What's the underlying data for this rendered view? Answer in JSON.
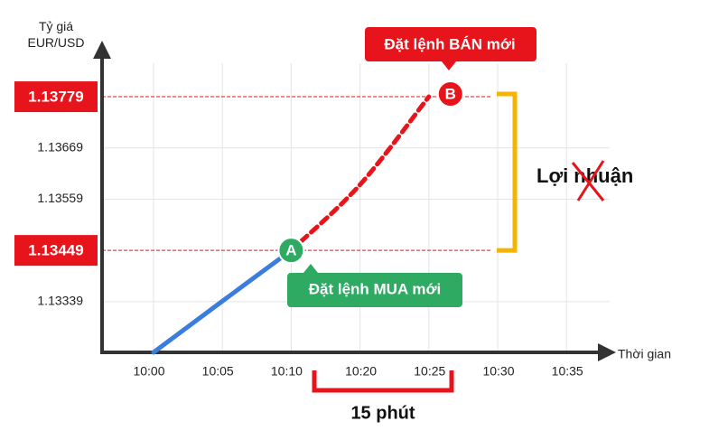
{
  "chart_data": {
    "type": "line",
    "y_label": "Tỷ giá\nEUR/USD",
    "x_label": "Thời gian",
    "categories": [
      "10:00",
      "10:05",
      "10:10",
      "10:20",
      "10:25",
      "10:30",
      "10:35"
    ],
    "series": [
      {
        "name": "solid",
        "color": "#3b7ddd",
        "style": "solid",
        "values": [
          1.1323,
          1.1334,
          1.13449,
          null,
          null,
          null,
          null
        ]
      },
      {
        "name": "dashed",
        "color": "#e8141c",
        "style": "dashed",
        "values": [
          null,
          null,
          1.13449,
          1.1359,
          1.13779,
          null,
          null
        ]
      }
    ],
    "ylim": [
      1.1323,
      1.1388
    ],
    "yticks": [
      1.13339,
      1.13449,
      1.13559,
      1.13669,
      1.13779
    ],
    "levels": {
      "buy": 1.13449,
      "sell": 1.13779
    },
    "level_color": "#e8141c",
    "grid": true,
    "annotations": {
      "buy_marker": "A",
      "sell_marker": "B",
      "buy_note": "Đặt lệnh MUA mới",
      "sell_note": "Đặt lệnh BÁN mới",
      "profit": "Lợi nhuận",
      "duration": "15 phút"
    }
  }
}
